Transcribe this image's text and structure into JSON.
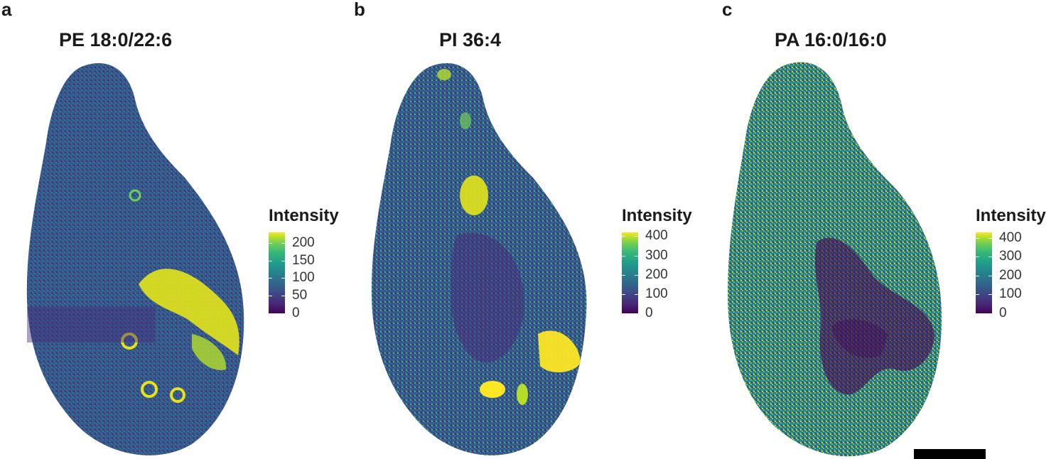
{
  "panels": [
    {
      "letter": "a",
      "title": "PE 18:0/22:6",
      "legend": {
        "title": "Intensity",
        "max": 230,
        "ticks": [
          {
            "value": 200,
            "label": "200"
          },
          {
            "value": 150,
            "label": "150"
          },
          {
            "value": 100,
            "label": "100"
          },
          {
            "value": 50,
            "label": "50"
          },
          {
            "value": 0,
            "label": "0"
          }
        ]
      }
    },
    {
      "letter": "b",
      "title": "PI 36:4",
      "legend": {
        "title": "Intensity",
        "max": 420,
        "ticks": [
          {
            "value": 400,
            "label": "400"
          },
          {
            "value": 300,
            "label": "300"
          },
          {
            "value": 200,
            "label": "200"
          },
          {
            "value": 100,
            "label": "100"
          },
          {
            "value": 0,
            "label": "0"
          }
        ]
      }
    },
    {
      "letter": "c",
      "title": "PA 16:0/16:0",
      "legend": {
        "title": "Intensity",
        "max": 430,
        "ticks": [
          {
            "value": 400,
            "label": "400"
          },
          {
            "value": 300,
            "label": "300"
          },
          {
            "value": 200,
            "label": "200"
          },
          {
            "value": 100,
            "label": "100"
          },
          {
            "value": 0,
            "label": "0"
          }
        ]
      }
    }
  ],
  "colormap": "viridis"
}
